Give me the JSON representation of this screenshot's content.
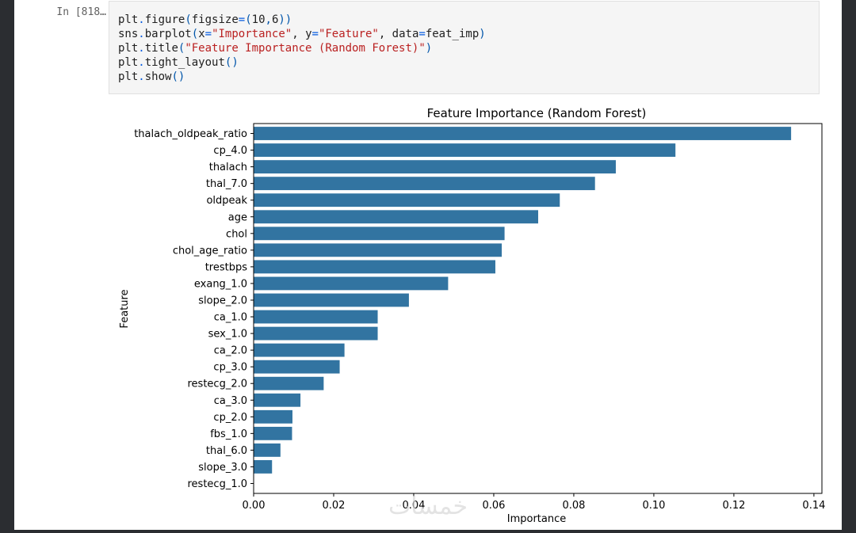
{
  "notebook": {
    "prompt": "In [818…",
    "code_lines": [
      [
        {
          "t": "plt"
        },
        {
          "t": ".",
          "c": "op"
        },
        {
          "t": "figure"
        },
        {
          "t": "(",
          "c": "punc"
        },
        {
          "t": "figsize"
        },
        {
          "t": "=",
          "c": "op"
        },
        {
          "t": "(",
          "c": "punc"
        },
        {
          "t": "10"
        },
        {
          "t": ",",
          "c": "punc"
        },
        {
          "t": "6"
        },
        {
          "t": "))",
          "c": "punc"
        }
      ],
      [
        {
          "t": "sns"
        },
        {
          "t": ".",
          "c": "op"
        },
        {
          "t": "barplot"
        },
        {
          "t": "(",
          "c": "punc"
        },
        {
          "t": "x"
        },
        {
          "t": "=",
          "c": "op"
        },
        {
          "t": "\"Importance\"",
          "c": "str"
        },
        {
          "t": ", "
        },
        {
          "t": "y"
        },
        {
          "t": "=",
          "c": "op"
        },
        {
          "t": "\"Feature\"",
          "c": "str"
        },
        {
          "t": ", "
        },
        {
          "t": "data"
        },
        {
          "t": "=",
          "c": "op"
        },
        {
          "t": "feat_imp"
        },
        {
          "t": ")",
          "c": "punc"
        }
      ],
      [
        {
          "t": "plt"
        },
        {
          "t": ".",
          "c": "op"
        },
        {
          "t": "title"
        },
        {
          "t": "(",
          "c": "punc"
        },
        {
          "t": "\"Feature Importance (Random Forest)\"",
          "c": "str"
        },
        {
          "t": ")",
          "c": "punc"
        }
      ],
      [
        {
          "t": "plt"
        },
        {
          "t": ".",
          "c": "op"
        },
        {
          "t": "tight_layout"
        },
        {
          "t": "()",
          "c": "punc"
        }
      ],
      [
        {
          "t": "plt"
        },
        {
          "t": ".",
          "c": "op"
        },
        {
          "t": "show"
        },
        {
          "t": "()",
          "c": "punc"
        }
      ]
    ]
  },
  "watermark": "خمسات",
  "chart_data": {
    "type": "bar",
    "orientation": "horizontal",
    "title": "Feature Importance (Random Forest)",
    "xlabel": "Importance",
    "ylabel": "Feature",
    "xlim": [
      0,
      0.142
    ],
    "xticks": [
      0.0,
      0.02,
      0.04,
      0.06,
      0.08,
      0.1,
      0.12,
      0.14
    ],
    "xtick_labels": [
      "0.00",
      "0.02",
      "0.04",
      "0.06",
      "0.08",
      "0.10",
      "0.12",
      "0.14"
    ],
    "bar_color": "#3274a1",
    "grid": false,
    "categories": [
      "thalach_oldpeak_ratio",
      "cp_4.0",
      "thalach",
      "thal_7.0",
      "oldpeak",
      "age",
      "chol",
      "chol_age_ratio",
      "trestbps",
      "exang_1.0",
      "slope_2.0",
      "ca_1.0",
      "sex_1.0",
      "ca_2.0",
      "cp_3.0",
      "restecg_2.0",
      "ca_3.0",
      "cp_2.0",
      "fbs_1.0",
      "thal_6.0",
      "slope_3.0",
      "restecg_1.0"
    ],
    "values": [
      0.1343,
      0.1054,
      0.0905,
      0.0853,
      0.0765,
      0.0711,
      0.0627,
      0.062,
      0.0604,
      0.0486,
      0.0388,
      0.031,
      0.031,
      0.0227,
      0.0215,
      0.0175,
      0.0117,
      0.0097,
      0.0096,
      0.0067,
      0.0046,
      0.0
    ]
  }
}
